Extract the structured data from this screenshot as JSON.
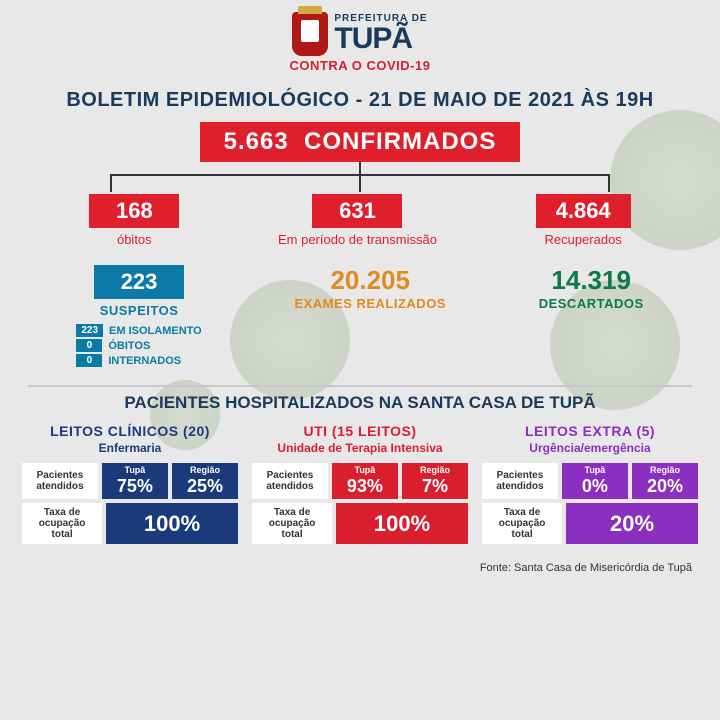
{
  "header": {
    "prefeitura": "PREFEITURA DE",
    "city": "TUPÃ",
    "contra": "CONTRA O COVID-19"
  },
  "title": "BOLETIM EPIDEMIOLÓGICO - 21 DE MAIO DE 2021 ÀS 19H",
  "confirmed": {
    "value": "5.663",
    "label": "CONFIRMADOS"
  },
  "tree": {
    "obitos": {
      "value": "168",
      "label": "óbitos"
    },
    "transmissao": {
      "value": "631",
      "label": "Em período de transmissão"
    },
    "recuperados": {
      "value": "4.864",
      "label": "Recuperados"
    }
  },
  "suspeitos": {
    "value": "223",
    "label": "SUSPEITOS",
    "details": [
      {
        "n": "223",
        "t": "EM ISOLAMENTO"
      },
      {
        "n": "0",
        "t": "ÓBITOS"
      },
      {
        "n": "0",
        "t": "INTERNADOS"
      }
    ]
  },
  "exames": {
    "value": "20.205",
    "label": "EXAMES REALIZADOS"
  },
  "descartados": {
    "value": "14.319",
    "label": "DESCARTADOS"
  },
  "hosp_title": "PACIENTES HOSPITALIZADOS NA SANTA CASA DE TUPÃ",
  "beds": {
    "clin": {
      "title": "LEITOS CLÍNICOS (20)",
      "sub": "Enfermaria",
      "atendidos_label": "Pacientes atendidos",
      "tupa_lbl": "Tupã",
      "tupa_pct": "75%",
      "regiao_lbl": "Região",
      "regiao_pct": "25%",
      "taxa_label": "Taxa de ocupação total",
      "taxa_pct": "100%"
    },
    "uti": {
      "title": "UTI (15 LEITOS)",
      "sub": "Unidade de Terapia Intensiva",
      "atendidos_label": "Pacientes atendidos",
      "tupa_lbl": "Tupã",
      "tupa_pct": "93%",
      "regiao_lbl": "Região",
      "regiao_pct": "7%",
      "taxa_label": "Taxa de ocupação total",
      "taxa_pct": "100%"
    },
    "extra": {
      "title": "LEITOS EXTRA (5)",
      "sub": "Urgência/emergência",
      "atendidos_label": "Pacientes atendidos",
      "tupa_lbl": "Tupã",
      "tupa_pct": "0%",
      "regiao_lbl": "Região",
      "regiao_pct": "20%",
      "taxa_label": "Taxa de ocupação total",
      "taxa_pct": "20%"
    }
  },
  "source": "Fonte: Santa Casa de Misericórdia de Tupã"
}
